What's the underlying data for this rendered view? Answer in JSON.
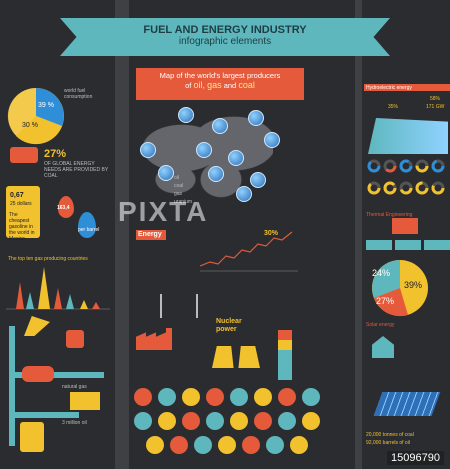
{
  "banner": {
    "title": "FUEL AND ENERGY INDUSTRY",
    "subtitle": "infographic elements"
  },
  "map": {
    "title_line1": "Map of the world's largest producers",
    "title_line2": "of",
    "title_oil": "oil,",
    "title_gas": "gas",
    "title_and": "and",
    "title_coal": "coal"
  },
  "left": {
    "pie": {
      "pct1": "39 %",
      "pct2": "30 %",
      "legend": "world fuel consumption"
    },
    "coal_pct": "27%",
    "coal_desc": "OF GLOBAL ENERGY NEEDS ARE PROVIDED BY COAL",
    "fuel_price": "0,67",
    "fuel_unit": "25 dollars",
    "fuel_desc": "The cheapest gasoline in the world in Mexico",
    "barrel_price": "163,4",
    "barrel_unit": "per barrel",
    "chart_title": "The top ten gas producing countries",
    "natural_gas": "natural gas",
    "crude": "3 million oil"
  },
  "middle": {
    "legend": [
      "oil",
      "coal",
      "gas",
      "uranium"
    ],
    "energy_label": "Energy",
    "energy_pct": "30%",
    "nuclear_label": "Nuclear",
    "nuclear_sub": "power"
  },
  "right": {
    "hydro_title": "Hydroelectric energy",
    "hydro_stat1": "58%",
    "hydro_stat2": "35%",
    "hydro_stat3": "171 GW",
    "thermal_title": "Thermal Engineering",
    "pie_pcts": [
      "24%",
      "39%",
      "27%"
    ],
    "solar_title": "Solar energy",
    "bottom_stat1": "20,000 tonnes of coal",
    "bottom_stat2": "92,000 barrels of oil"
  },
  "watermark": "PIXTA",
  "footer_id": "15096790",
  "colors": {
    "bg": "#3b3c3f",
    "panel": "#2b2c2f",
    "teal": "#5fb7be",
    "orange": "#e45a3b",
    "yellow": "#f2c12e",
    "blue": "#2e8fd8"
  }
}
